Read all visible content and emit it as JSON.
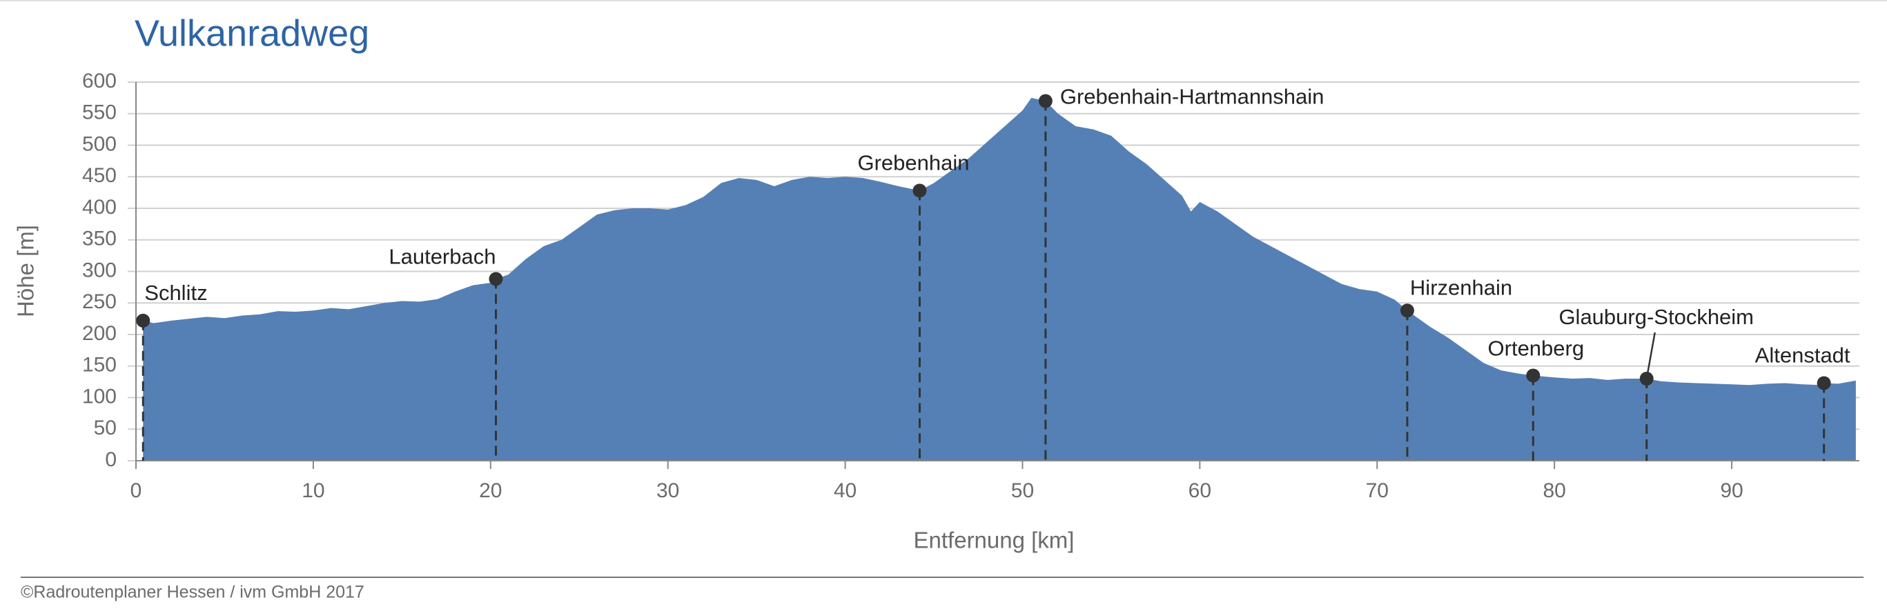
{
  "chart_data": {
    "type": "area",
    "title": "Vulkanradweg",
    "xlabel": "Entfernung [km]",
    "ylabel": "Höhe [m]",
    "color": "#5580b5",
    "grid": true,
    "xlim": [
      0,
      97.2
    ],
    "ylim": [
      0,
      600
    ],
    "xticks": [
      0,
      10,
      20,
      30,
      40,
      50,
      60,
      70,
      80,
      90
    ],
    "yticks": [
      0,
      50,
      100,
      150,
      200,
      250,
      300,
      350,
      400,
      450,
      500,
      550,
      600
    ],
    "x": [
      0.4,
      1,
      2,
      3,
      4,
      5,
      6,
      7,
      8,
      9,
      10,
      11,
      12,
      13,
      14,
      15,
      16,
      17,
      18,
      19,
      20,
      20.3,
      21,
      22,
      23,
      24,
      25,
      26,
      27,
      28,
      29,
      30,
      31,
      32,
      33,
      34,
      35,
      36,
      37,
      38,
      39,
      40,
      41,
      42,
      43,
      44.2,
      45,
      46,
      47,
      48,
      49,
      50,
      50.5,
      51.3,
      52,
      53,
      54,
      55,
      56,
      57,
      58,
      59,
      59.5,
      60,
      61,
      62,
      63,
      64,
      65,
      66,
      67,
      68,
      69,
      70,
      71,
      71.7,
      72,
      73,
      74,
      75,
      76,
      77,
      78,
      78.8,
      80,
      81,
      82,
      83,
      84,
      85.2,
      86,
      87,
      88,
      89,
      90,
      91,
      92,
      93,
      94,
      95,
      95.2,
      96,
      97
    ],
    "values": [
      222,
      218,
      222,
      225,
      228,
      226,
      230,
      232,
      237,
      236,
      238,
      242,
      240,
      245,
      250,
      253,
      252,
      256,
      268,
      278,
      282,
      288,
      295,
      320,
      340,
      350,
      370,
      390,
      397,
      400,
      400,
      398,
      405,
      418,
      440,
      448,
      445,
      435,
      445,
      450,
      448,
      450,
      448,
      442,
      435,
      428,
      440,
      460,
      480,
      505,
      530,
      555,
      575,
      570,
      550,
      530,
      525,
      515,
      490,
      470,
      445,
      420,
      395,
      410,
      395,
      375,
      355,
      340,
      325,
      310,
      295,
      280,
      272,
      268,
      255,
      238,
      232,
      212,
      195,
      175,
      155,
      143,
      138,
      135,
      132,
      130,
      131,
      128,
      130,
      130,
      126,
      124,
      123,
      122,
      121,
      120,
      122,
      123,
      121,
      120,
      123,
      122,
      127
    ],
    "annotations": [
      {
        "label": "Schlitz",
        "x": 0.4,
        "y": 222
      },
      {
        "label": "Lauterbach",
        "x": 20.3,
        "y": 288
      },
      {
        "label": "Grebenhain",
        "x": 44.2,
        "y": 428
      },
      {
        "label": "Grebenhain-Hartmannshain",
        "x": 51.3,
        "y": 570
      },
      {
        "label": "Hirzenhain",
        "x": 71.7,
        "y": 238
      },
      {
        "label": "Ortenberg",
        "x": 78.8,
        "y": 135
      },
      {
        "label": "Glauburg-Stockheim",
        "x": 85.2,
        "y": 130
      },
      {
        "label": "Altenstadt",
        "x": 95.2,
        "y": 123
      }
    ]
  },
  "footer": "©Radroutenplaner Hessen / ivm GmbH 2017"
}
